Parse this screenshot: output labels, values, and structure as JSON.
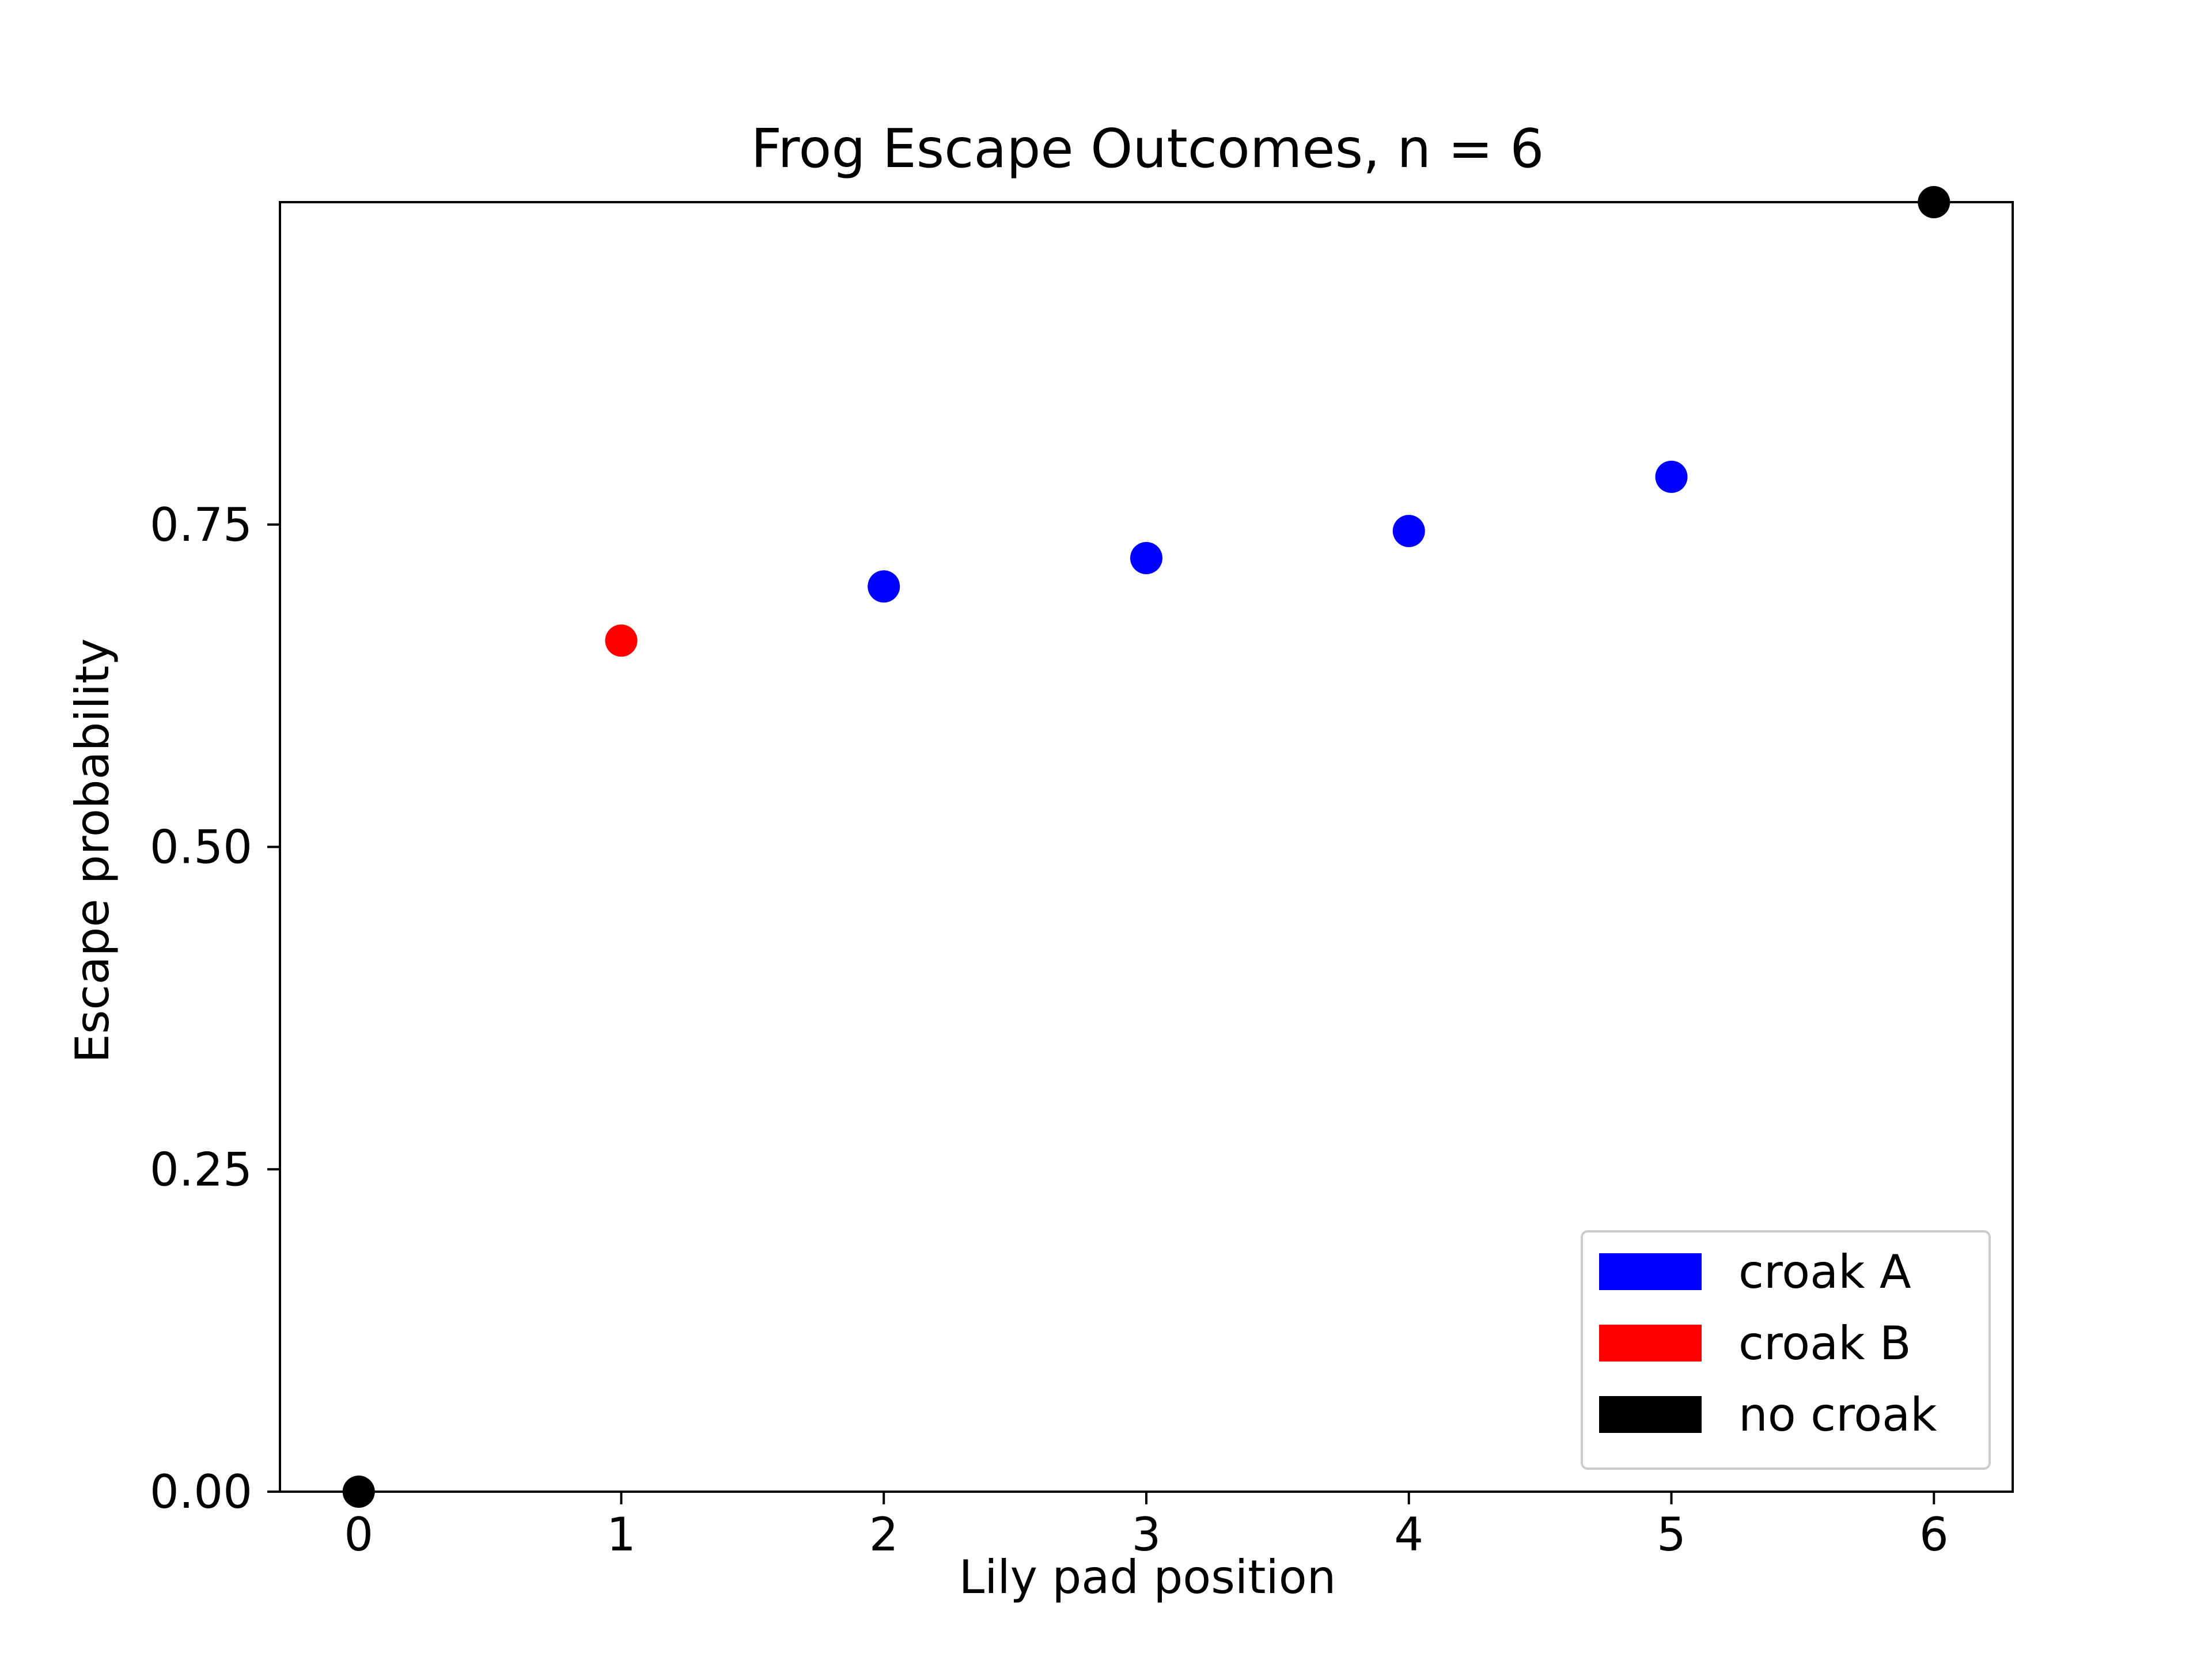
{
  "chart_data": {
    "type": "scatter",
    "title": "Frog Escape Outcomes, n = 6",
    "xlabel": "Lily pad position",
    "ylabel": "Escape probability",
    "xlim": [
      -0.3,
      6.3
    ],
    "ylim": [
      0,
      1.0
    ],
    "x_ticks": [
      "0",
      "1",
      "2",
      "3",
      "4",
      "5",
      "6"
    ],
    "y_ticks": [
      "0.00",
      "0.25",
      "0.50",
      "0.75"
    ],
    "grid": false,
    "legend_position": "lower-right",
    "series": [
      {
        "name": "croak A",
        "color": "#0000ff",
        "x": [
          2,
          3,
          4,
          5
        ],
        "y": [
          0.702,
          0.724,
          0.745,
          0.787
        ]
      },
      {
        "name": "croak B",
        "color": "#ff0000",
        "x": [
          1
        ],
        "y": [
          0.66
        ]
      },
      {
        "name": "no croak",
        "color": "#000000",
        "x": [
          0,
          6
        ],
        "y": [
          0.0,
          1.0
        ]
      }
    ]
  }
}
